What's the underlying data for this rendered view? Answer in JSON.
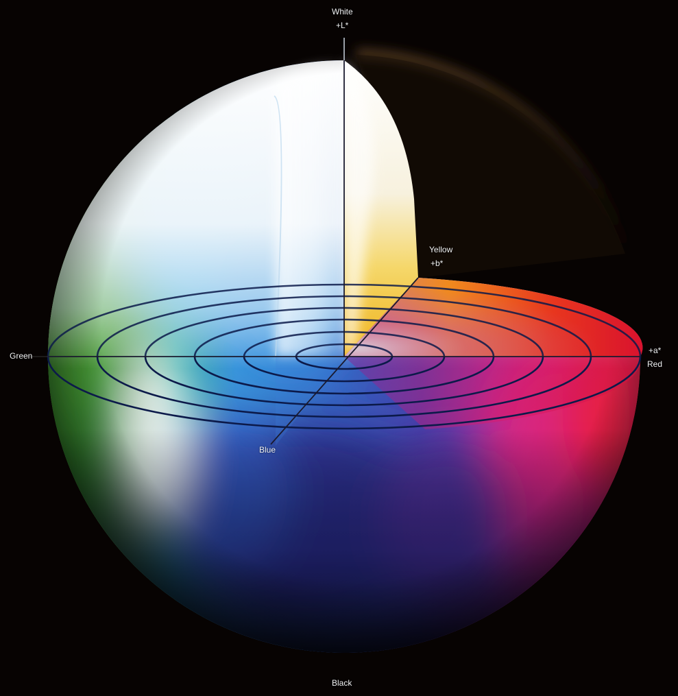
{
  "labels": {
    "white": "White",
    "l_axis": "+L*",
    "yellow": "Yellow",
    "b_axis": "+b*",
    "green": "Green",
    "a_axis": "+a*",
    "red": "Red",
    "blue": "Blue",
    "black": "Black"
  },
  "colors": {
    "background": "#070302",
    "white": "#f4f8fb",
    "yellow": "#f3c522",
    "orange": "#f07a12",
    "red": "#e5173a",
    "magenta": "#d51a7c",
    "blue": "#2e6fd0",
    "deep_blue": "#262a8c",
    "cyan": "#35a6e6",
    "green": "#3f9a2c",
    "ring_line": "#0c1a4a"
  }
}
